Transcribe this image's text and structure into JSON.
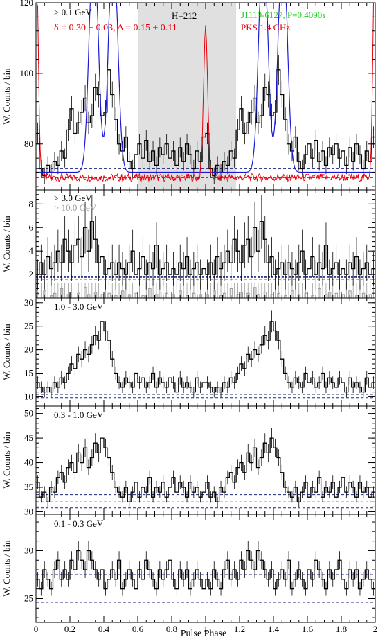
{
  "figure": {
    "xlabel": "Pulse Phase",
    "x_ticks": [
      "0",
      "0.2",
      "0.4",
      "0.6",
      "0.8",
      "1",
      "1.2",
      "1.4",
      "1.6",
      "1.8",
      "2"
    ],
    "colors": {
      "axis": "#000000",
      "histogram": "#000000",
      "radio": "#e8000b",
      "blue_curve": "#1a1ad6",
      "background_line": "#1a237e",
      "shade": "#e0e0e0",
      "high_energy": "#999999",
      "label_green": "#22cc22",
      "label_red": "#e8000b"
    }
  },
  "chart_data": [
    {
      "type": "histogram",
      "band": "> 0.1 GeV",
      "ylabel": "W. Counts / bin",
      "ylim": [
        67,
        120
      ],
      "y_ticks": [
        "80",
        "100",
        "120"
      ],
      "xlim": [
        0,
        2
      ],
      "bins_per_phase": 50,
      "annotations": {
        "pulsar": "J1119-6127, P=0.4090s",
        "radio": "PKS 1.4 GHz",
        "delta": "δ = 0.30 ± 0.03, Δ = 0.15 ± 0.11",
        "htest": "H=212"
      },
      "offpulse_region": [
        0.6,
        1.18
      ],
      "background_levels": [
        73,
        70.5
      ],
      "profile": [
        83,
        73,
        71,
        74,
        72,
        75,
        74,
        78,
        76,
        84,
        90,
        83,
        86,
        89,
        93,
        86,
        88,
        96,
        94,
        88,
        89,
        101,
        94,
        87,
        80,
        78,
        82,
        75,
        73,
        77,
        80,
        76,
        81,
        75,
        78,
        74,
        79,
        77,
        80,
        76,
        78,
        74,
        79,
        75,
        80,
        77,
        73,
        78,
        75,
        82
      ]
    },
    {
      "type": "histogram",
      "band": "> 3.0 GeV",
      "band2": "> 10.0 GeV",
      "ylabel": "W. Counts / bin",
      "ylim": [
        0,
        9.2
      ],
      "y_ticks": [
        "2",
        "4",
        "6",
        "8"
      ],
      "xlim": [
        0,
        2
      ],
      "bins_per_phase": 50,
      "background_levels": [
        1.8,
        1.6
      ],
      "profile": [
        2.0,
        3.0,
        2.0,
        3.5,
        2.5,
        3.0,
        4.0,
        3.0,
        5.0,
        4.0,
        3.0,
        4.5,
        5.0,
        3.5,
        6.0,
        4.0,
        6.5,
        5.0,
        3.0,
        3.5,
        2.0,
        2.5,
        3.0,
        2.0,
        3.0,
        2.5,
        2.0,
        3.0,
        4.0,
        2.0,
        2.5,
        3.5,
        2.0,
        3.0,
        2.5,
        4.5,
        2.0,
        2.5,
        3.0,
        2.0,
        2.5,
        2.0,
        3.0,
        2.5,
        3.5,
        2.0,
        2.5,
        3.0,
        2.0,
        2.5
      ],
      "profile_high": [
        0.3,
        0,
        0.6,
        0,
        0.2,
        0.4,
        0,
        0.8,
        0,
        0.3,
        0.5,
        0,
        0.4,
        0,
        0.9,
        0.3,
        0,
        0.5,
        0,
        0.3,
        0,
        0.4,
        0,
        0.2,
        0,
        0.6,
        0,
        0.3,
        0,
        0.4,
        0,
        0.2,
        0,
        0.8,
        0,
        0.3,
        0.5,
        0,
        0.4,
        0,
        0.3,
        0,
        0.6,
        0,
        0.2,
        0,
        0.4,
        0,
        0.3,
        0
      ]
    },
    {
      "type": "histogram",
      "band": "1.0 - 3.0 GeV",
      "ylabel": "W. Counts / bin",
      "ylim": [
        8,
        31
      ],
      "y_ticks": [
        "10",
        "15",
        "20",
        "25",
        "30"
      ],
      "xlim": [
        0,
        2
      ],
      "bins_per_phase": 50,
      "background_levels": [
        10.5,
        9.8
      ],
      "profile": [
        13,
        12,
        11,
        12,
        11,
        13,
        12,
        14,
        13,
        15,
        17,
        16,
        19,
        18,
        20,
        19,
        21,
        23,
        22,
        26,
        24,
        22,
        18,
        15,
        13,
        12,
        14,
        13,
        12,
        15,
        13,
        14,
        12,
        13,
        15,
        12,
        14,
        13,
        12,
        14,
        13,
        11,
        14,
        12,
        13,
        12,
        11,
        14,
        12,
        13
      ]
    },
    {
      "type": "histogram",
      "band": "0.3 - 1.0 GeV",
      "ylabel": "W. Counts / bin",
      "ylim": [
        29.5,
        51.5
      ],
      "y_ticks": [
        "30",
        "35",
        "40",
        "45",
        "50"
      ],
      "xlim": [
        0,
        2
      ],
      "bins_per_phase": 50,
      "background_levels": [
        33.5,
        32,
        30.8
      ],
      "profile": [
        36,
        33,
        34,
        32,
        35,
        34,
        37,
        38,
        36,
        39,
        40,
        38,
        42,
        40,
        43,
        39,
        41,
        44,
        42,
        45,
        43,
        41,
        38,
        35,
        34,
        33,
        35,
        32,
        34,
        36,
        33,
        35,
        34,
        37,
        33,
        35,
        34,
        36,
        33,
        35,
        37,
        34,
        36,
        35,
        33,
        36,
        34,
        35,
        33,
        34
      ]
    },
    {
      "type": "histogram",
      "band": "0.1 - 0.3 GeV",
      "ylabel": "W. Counts / bin",
      "ylim": [
        22.5,
        33.8
      ],
      "y_ticks": [
        "25",
        "30"
      ],
      "xlim": [
        0,
        2
      ],
      "bins_per_phase": 50,
      "background_levels": [
        27.5,
        24.6
      ],
      "profile": [
        27,
        26,
        28,
        27,
        26,
        28,
        29,
        27,
        28,
        27,
        29,
        28,
        30,
        29,
        28,
        30,
        29,
        28,
        27,
        28,
        26,
        27,
        28,
        27,
        29,
        26,
        27,
        28,
        27,
        26,
        28,
        27,
        29,
        28,
        27,
        26,
        28,
        27,
        28,
        29,
        27,
        26,
        28,
        27,
        28,
        26,
        27,
        28,
        27,
        26
      ]
    }
  ]
}
